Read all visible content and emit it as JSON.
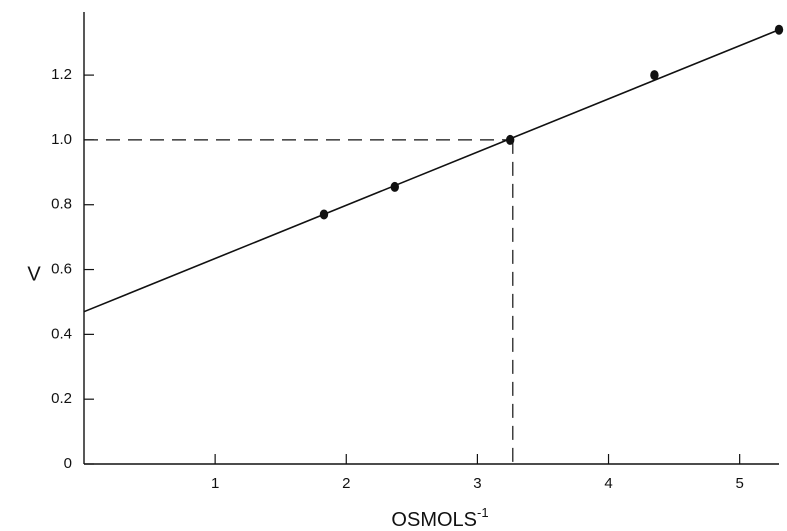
{
  "chart_data": {
    "type": "scatter",
    "xlabel": "OSMOLS",
    "xlabel_superscript": "-1",
    "ylabel": "V",
    "xlim": [
      0,
      5.3
    ],
    "ylim": [
      0,
      1.37
    ],
    "x_ticks": [
      1,
      2,
      3,
      4,
      5
    ],
    "x_tick_labels": [
      "1",
      "2",
      "3",
      "4",
      "5"
    ],
    "y_ticks": [
      0,
      0.2,
      0.4,
      0.6,
      0.8,
      1.0,
      1.2
    ],
    "y_tick_labels": [
      "0",
      "0.2",
      "0.4",
      "0.6",
      "0.8",
      "1.0",
      "1.2"
    ],
    "grid": false,
    "series": [
      {
        "points": [
          {
            "x": 1.83,
            "y": 0.77
          },
          {
            "x": 2.37,
            "y": 0.855
          },
          {
            "x": 3.25,
            "y": 1.0
          },
          {
            "x": 4.35,
            "y": 1.2
          },
          {
            "x": 5.3,
            "y": 1.34
          }
        ]
      }
    ],
    "fit_line": {
      "x": [
        0,
        5.3
      ],
      "y": [
        0.47,
        1.34
      ]
    },
    "reference_lines": {
      "x": 3.27,
      "y": 1.0,
      "style": "dashed"
    }
  }
}
